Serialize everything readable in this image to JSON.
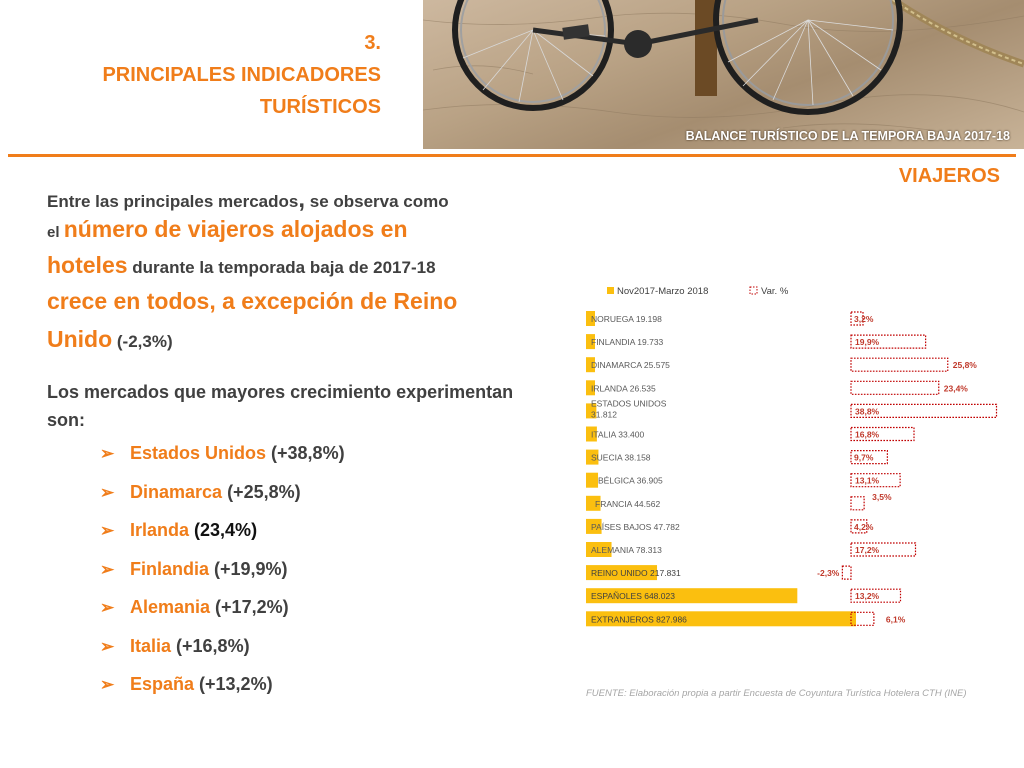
{
  "header": {
    "section_number": "3.",
    "title_line1": "PRINCIPALES INDICADORES",
    "title_line2": "TURÍSTICOS",
    "photo_caption": "BALANCE TURÍSTICO DE LA TEMPORA BAJA 2017-18",
    "section_subtitle": "VIAJEROS"
  },
  "intro": {
    "l1a": "Entre las principales mercados",
    "l1b": ",",
    "l1c": " se observa como",
    "l2a": "el ",
    "l2b": "número de viajeros alojados en",
    "l3a": "hoteles",
    "l3b": " durante la temporada baja de 2017-18",
    "l4": "crece en todos, a excepción de Reino",
    "l5a": "Unido",
    "l5b": " (-2,3%)"
  },
  "growth_text": "Los mercados que mayores crecimiento experimentan son:",
  "bullets": [
    {
      "country": "Estados Unidos",
      "value": " (+38,8%)"
    },
    {
      "country": "Dinamarca",
      "value": " (+25,8%)"
    },
    {
      "country": "Irlanda",
      "value": " (23,4%)"
    },
    {
      "country": "Finlandia",
      "value": " (+19,9%)"
    },
    {
      "country": "Alemania",
      "value": " (+17,2%)"
    },
    {
      "country": "Italia",
      "value": " (+16,8%)"
    },
    {
      "country": "España",
      "value": " (+13,2%)"
    }
  ],
  "bullet_glyph": "➢",
  "source": "FUENTE: Elaboración propia a partir Encuesta de Coyuntura Turística Hotelera CTH (INE)",
  "colors": {
    "accent": "#f07d1a",
    "bar": "#fbbf0f",
    "var_outline": "#c00000",
    "var_text": "#c0392b",
    "body_text": "#404040"
  },
  "chart_data": {
    "type": "bar",
    "orientation": "horizontal",
    "legend_position": "top",
    "grid": false,
    "categories": [
      {
        "label": "NORUEGA 19.198"
      },
      {
        "label": "FINLANDIA 19.733"
      },
      {
        "label": "DINAMARCA 25.575"
      },
      {
        "label": "IRLANDA 26.535"
      },
      {
        "label": "ESTADOS UNIDOS",
        "label2": "31.812"
      },
      {
        "label": "ITALIA 33.400"
      },
      {
        "label": "SUECIA 38.158"
      },
      {
        "label": "BÉLGICA 36.905"
      },
      {
        "label": "FRANCIA 44.562"
      },
      {
        "label": "PAÍSES BAJOS 47.782"
      },
      {
        "label": "ALEMANIA 78.313"
      },
      {
        "label": "REINO UNIDO 217.831"
      },
      {
        "label": "ESPAÑOLES 648.023"
      },
      {
        "label": "EXTRANJEROS 827.986"
      }
    ],
    "series": [
      {
        "name": "Nov2017-Marzo 2018",
        "values": [
          19198,
          19733,
          25575,
          26535,
          31812,
          33400,
          38158,
          36905,
          44562,
          47782,
          78313,
          217831,
          648023,
          827986
        ]
      },
      {
        "name": "Var. %",
        "values": [
          3.2,
          19.9,
          25.8,
          23.4,
          38.8,
          16.8,
          9.7,
          13.1,
          3.5,
          4.2,
          17.2,
          -2.3,
          13.2,
          6.1
        ],
        "labels": [
          "3,2%",
          "19,9%",
          "25,8%",
          "23,4%",
          "38,8%",
          "16,8%",
          "9,7%",
          "13,1%",
          "3,5%",
          "4,2%",
          "17,2%",
          "-2,3%",
          "13,2%",
          "6,1%"
        ]
      }
    ]
  }
}
